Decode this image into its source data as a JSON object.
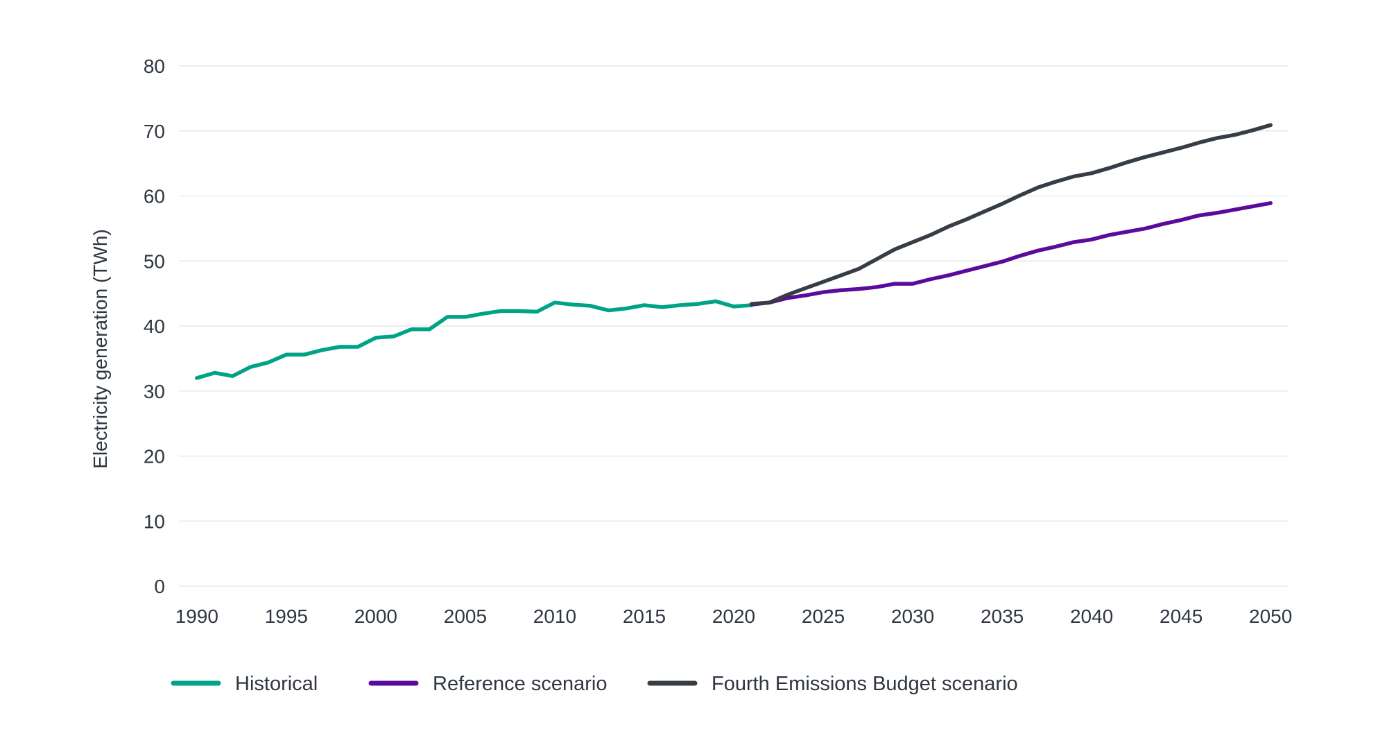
{
  "chart_data": {
    "type": "line",
    "title": "",
    "xlabel": "",
    "ylabel": "Electricity generation (TWh)",
    "ylim": [
      0,
      80
    ],
    "xlim": [
      1989,
      2051
    ],
    "yticks": [
      0,
      10,
      20,
      30,
      40,
      50,
      60,
      70,
      80
    ],
    "xticks": [
      1990,
      1995,
      2000,
      2005,
      2010,
      2015,
      2020,
      2025,
      2030,
      2035,
      2040,
      2045,
      2050
    ],
    "grid": true,
    "legend_position": "bottom",
    "series": [
      {
        "name": "Historical",
        "color": "#00a386",
        "x": [
          1990,
          1991,
          1992,
          1993,
          1994,
          1995,
          1996,
          1997,
          1998,
          1999,
          2000,
          2001,
          2002,
          2003,
          2004,
          2005,
          2006,
          2007,
          2008,
          2009,
          2010,
          2011,
          2012,
          2013,
          2014,
          2015,
          2016,
          2017,
          2018,
          2019,
          2020,
          2021
        ],
        "values": [
          32.0,
          32.8,
          32.3,
          33.7,
          34.4,
          35.6,
          35.6,
          36.3,
          36.8,
          36.8,
          38.2,
          38.4,
          39.5,
          39.5,
          41.4,
          41.4,
          41.9,
          42.3,
          42.3,
          42.2,
          43.6,
          43.3,
          43.1,
          42.4,
          42.7,
          43.2,
          42.9,
          43.2,
          43.4,
          43.8,
          43.0,
          43.2
        ]
      },
      {
        "name": "Reference scenario",
        "color": "#5b0b9c",
        "x": [
          2021,
          2022,
          2023,
          2024,
          2025,
          2026,
          2027,
          2028,
          2029,
          2030,
          2031,
          2032,
          2033,
          2034,
          2035,
          2036,
          2037,
          2038,
          2039,
          2040,
          2041,
          2042,
          2043,
          2044,
          2045,
          2046,
          2047,
          2048,
          2049,
          2050
        ],
        "values": [
          43.3,
          43.6,
          44.3,
          44.7,
          45.2,
          45.5,
          45.7,
          46.0,
          46.5,
          46.5,
          47.2,
          47.8,
          48.5,
          49.2,
          49.9,
          50.8,
          51.6,
          52.2,
          52.9,
          53.3,
          54.0,
          54.5,
          55.0,
          55.7,
          56.3,
          57.0,
          57.4,
          57.9,
          58.4,
          58.9
        ]
      },
      {
        "name": "Fourth Emissions Budget scenario",
        "color": "#363d45",
        "x": [
          2021,
          2022,
          2023,
          2024,
          2025,
          2026,
          2027,
          2028,
          2029,
          2030,
          2031,
          2032,
          2033,
          2034,
          2035,
          2036,
          2037,
          2038,
          2039,
          2040,
          2041,
          2042,
          2043,
          2044,
          2045,
          2046,
          2047,
          2048,
          2049,
          2050
        ],
        "values": [
          43.4,
          43.6,
          44.8,
          45.8,
          46.8,
          47.8,
          48.8,
          50.3,
          51.8,
          52.9,
          54.0,
          55.3,
          56.4,
          57.6,
          58.8,
          60.1,
          61.3,
          62.2,
          63.0,
          63.5,
          64.3,
          65.2,
          66.0,
          66.7,
          67.4,
          68.2,
          68.9,
          69.4,
          70.1,
          70.9
        ]
      }
    ]
  }
}
